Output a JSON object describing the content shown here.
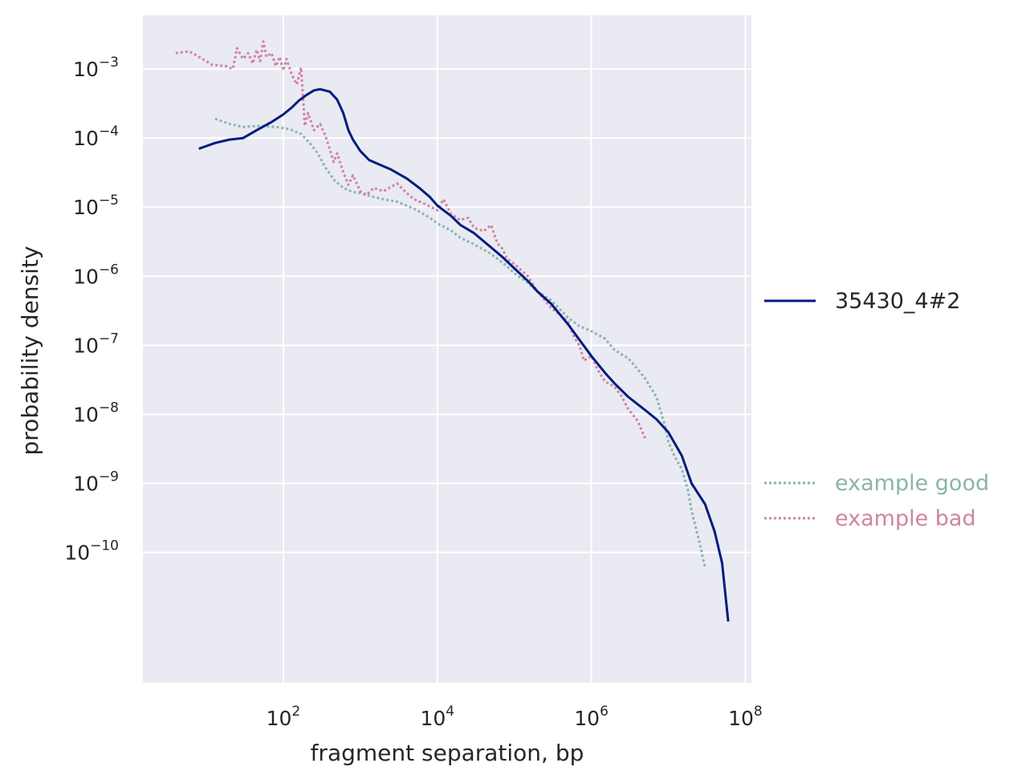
{
  "chart_data": {
    "type": "line",
    "xscale": "log",
    "yscale": "log",
    "xlabel": "fragment separation, bp",
    "ylabel": "probability density",
    "xlim": [
      1.5,
      120000000
    ],
    "ylim": [
      1.3e-12,
      0.006
    ],
    "xticks": [
      100,
      10000,
      1000000,
      100000000
    ],
    "yticks": [
      0.001,
      0.0001,
      1e-05,
      1e-06,
      1e-07,
      1e-08,
      1e-09,
      1e-10
    ],
    "xtick_labels": [
      {
        "base": "10",
        "exp": "2"
      },
      {
        "base": "10",
        "exp": "4"
      },
      {
        "base": "10",
        "exp": "6"
      },
      {
        "base": "10",
        "exp": "8"
      }
    ],
    "ytick_labels": [
      {
        "base": "10",
        "exp": "−3"
      },
      {
        "base": "10",
        "exp": "−4"
      },
      {
        "base": "10",
        "exp": "−5"
      },
      {
        "base": "10",
        "exp": "−6"
      },
      {
        "base": "10",
        "exp": "−7"
      },
      {
        "base": "10",
        "exp": "−8"
      },
      {
        "base": "10",
        "exp": "−9"
      },
      {
        "base": "10",
        "exp": "−10"
      }
    ],
    "grid": true,
    "legend_placement": "right",
    "series": [
      {
        "name": "35430_4#2",
        "color": "#001c7f",
        "style": "solid",
        "points": [
          [
            8,
            7e-05
          ],
          [
            13,
            8.5e-05
          ],
          [
            20,
            9.5e-05
          ],
          [
            30,
            0.0001
          ],
          [
            45,
            0.00013
          ],
          [
            70,
            0.00017
          ],
          [
            100,
            0.00022
          ],
          [
            130,
            0.00028
          ],
          [
            160,
            0.00035
          ],
          [
            200,
            0.00042
          ],
          [
            250,
            0.00049
          ],
          [
            300,
            0.00051
          ],
          [
            400,
            0.00047
          ],
          [
            500,
            0.00036
          ],
          [
            600,
            0.00023
          ],
          [
            700,
            0.00013
          ],
          [
            800,
            9.5e-05
          ],
          [
            1000,
            6.5e-05
          ],
          [
            1300,
            4.8e-05
          ],
          [
            1800,
            4.1e-05
          ],
          [
            2500,
            3.5e-05
          ],
          [
            4000,
            2.6e-05
          ],
          [
            6000,
            1.85e-05
          ],
          [
            8000,
            1.4e-05
          ],
          [
            10000,
            1.05e-05
          ],
          [
            15000,
            7.5e-06
          ],
          [
            20000,
            5.5e-06
          ],
          [
            30000,
            4.2e-06
          ],
          [
            50000,
            2.6e-06
          ],
          [
            70000,
            1.9e-06
          ],
          [
            100000,
            1.3e-06
          ],
          [
            150000,
            8.5e-07
          ],
          [
            200000,
            6e-07
          ],
          [
            300000,
            4e-07
          ],
          [
            500000,
            2e-07
          ],
          [
            700000,
            1.2e-07
          ],
          [
            1000000,
            7e-08
          ],
          [
            1500000,
            4e-08
          ],
          [
            2000000,
            2.8e-08
          ],
          [
            3000000,
            1.8e-08
          ],
          [
            5000000,
            1.15e-08
          ],
          [
            7000000,
            8.5e-09
          ],
          [
            10000000,
            5.5e-09
          ],
          [
            15000000,
            2.5e-09
          ],
          [
            20000000,
            1e-09
          ],
          [
            30000000,
            5e-10
          ],
          [
            40000000,
            2e-10
          ],
          [
            50000000,
            7e-11
          ],
          [
            60000000,
            1e-11
          ]
        ]
      },
      {
        "name": "example good",
        "color": "#8ab5ad",
        "style": "dotted",
        "points": [
          [
            13,
            0.00019
          ],
          [
            20,
            0.00016
          ],
          [
            30,
            0.000145
          ],
          [
            50,
            0.00015
          ],
          [
            80,
            0.000145
          ],
          [
            120,
            0.000135
          ],
          [
            170,
            0.000115
          ],
          [
            220,
            8.5e-05
          ],
          [
            280,
            6e-05
          ],
          [
            350,
            3.8e-05
          ],
          [
            450,
            2.5e-05
          ],
          [
            600,
            1.9e-05
          ],
          [
            800,
            1.65e-05
          ],
          [
            1000,
            1.6e-05
          ],
          [
            1500,
            1.4e-05
          ],
          [
            2000,
            1.3e-05
          ],
          [
            3000,
            1.2e-05
          ],
          [
            5000,
            9.5e-06
          ],
          [
            8000,
            7e-06
          ],
          [
            10000,
            5.8e-06
          ],
          [
            15000,
            4.6e-06
          ],
          [
            20000,
            3.6e-06
          ],
          [
            30000,
            2.9e-06
          ],
          [
            50000,
            2.1e-06
          ],
          [
            80000,
            1.4e-06
          ],
          [
            100000,
            1.1e-06
          ],
          [
            150000,
            8e-07
          ],
          [
            200000,
            6e-07
          ],
          [
            300000,
            4.5e-07
          ],
          [
            500000,
            2.5e-07
          ],
          [
            700000,
            1.9e-07
          ],
          [
            1000000,
            1.6e-07
          ],
          [
            1500000,
            1.25e-07
          ],
          [
            2000000,
            8.5e-08
          ],
          [
            3000000,
            6.5e-08
          ],
          [
            4000000,
            4.5e-08
          ],
          [
            5000000,
            3.3e-08
          ],
          [
            7000000,
            1.8e-08
          ],
          [
            9000000,
            7e-09
          ],
          [
            10000000,
            4e-09
          ],
          [
            12000000,
            2.5e-09
          ],
          [
            15000000,
            1.6e-09
          ],
          [
            18000000,
            8e-10
          ],
          [
            20000000,
            4e-10
          ],
          [
            25000000,
            1.5e-10
          ],
          [
            30000000,
            6e-11
          ]
        ]
      },
      {
        "name": "example bad",
        "color": "#d084a3",
        "style": "dotted",
        "points": [
          [
            4,
            0.0017
          ],
          [
            6,
            0.0018
          ],
          [
            8,
            0.0015
          ],
          [
            12,
            0.00115
          ],
          [
            18,
            0.0011
          ],
          [
            22,
            0.001
          ],
          [
            25,
            0.002
          ],
          [
            30,
            0.0014
          ],
          [
            35,
            0.0017
          ],
          [
            40,
            0.0012
          ],
          [
            45,
            0.0019
          ],
          [
            50,
            0.0013
          ],
          [
            55,
            0.0025
          ],
          [
            60,
            0.0015
          ],
          [
            70,
            0.0017
          ],
          [
            80,
            0.0011
          ],
          [
            90,
            0.0015
          ],
          [
            100,
            0.00095
          ],
          [
            110,
            0.0014
          ],
          [
            130,
            0.0008
          ],
          [
            150,
            0.0006
          ],
          [
            170,
            0.00105
          ],
          [
            180,
            0.0004
          ],
          [
            190,
            0.00015
          ],
          [
            210,
            0.00023
          ],
          [
            250,
            0.00013
          ],
          [
            300,
            0.00016
          ],
          [
            350,
            0.00011
          ],
          [
            400,
            7e-05
          ],
          [
            450,
            4.5e-05
          ],
          [
            500,
            6e-05
          ],
          [
            600,
            3.2e-05
          ],
          [
            700,
            2.1e-05
          ],
          [
            800,
            2.9e-05
          ],
          [
            1000,
            1.7e-05
          ],
          [
            1200,
            1.5e-05
          ],
          [
            1500,
            1.9e-05
          ],
          [
            2000,
            1.7e-05
          ],
          [
            3000,
            2.2e-05
          ],
          [
            4000,
            1.6e-05
          ],
          [
            5000,
            1.3e-05
          ],
          [
            7000,
            1.1e-05
          ],
          [
            10000,
            9e-06
          ],
          [
            12000,
            1.3e-05
          ],
          [
            15000,
            8e-06
          ],
          [
            20000,
            6.5e-06
          ],
          [
            25000,
            7e-06
          ],
          [
            30000,
            5e-06
          ],
          [
            40000,
            4.5e-06
          ],
          [
            50000,
            5.5e-06
          ],
          [
            60000,
            3e-06
          ],
          [
            70000,
            2.5e-06
          ],
          [
            80000,
            1.8e-06
          ],
          [
            100000,
            1.5e-06
          ],
          [
            150000,
            1e-06
          ],
          [
            200000,
            6e-07
          ],
          [
            300000,
            3.5e-07
          ],
          [
            500000,
            2.2e-07
          ],
          [
            600000,
            1.3e-07
          ],
          [
            700000,
            1e-07
          ],
          [
            800000,
            6e-08
          ],
          [
            1000000,
            7e-08
          ],
          [
            1200000,
            4.5e-08
          ],
          [
            1500000,
            3e-08
          ],
          [
            2000000,
            2.5e-08
          ],
          [
            2500000,
            1.8e-08
          ],
          [
            3000000,
            1.2e-08
          ],
          [
            4000000,
            8e-09
          ],
          [
            5000000,
            4.5e-09
          ]
        ]
      }
    ]
  }
}
